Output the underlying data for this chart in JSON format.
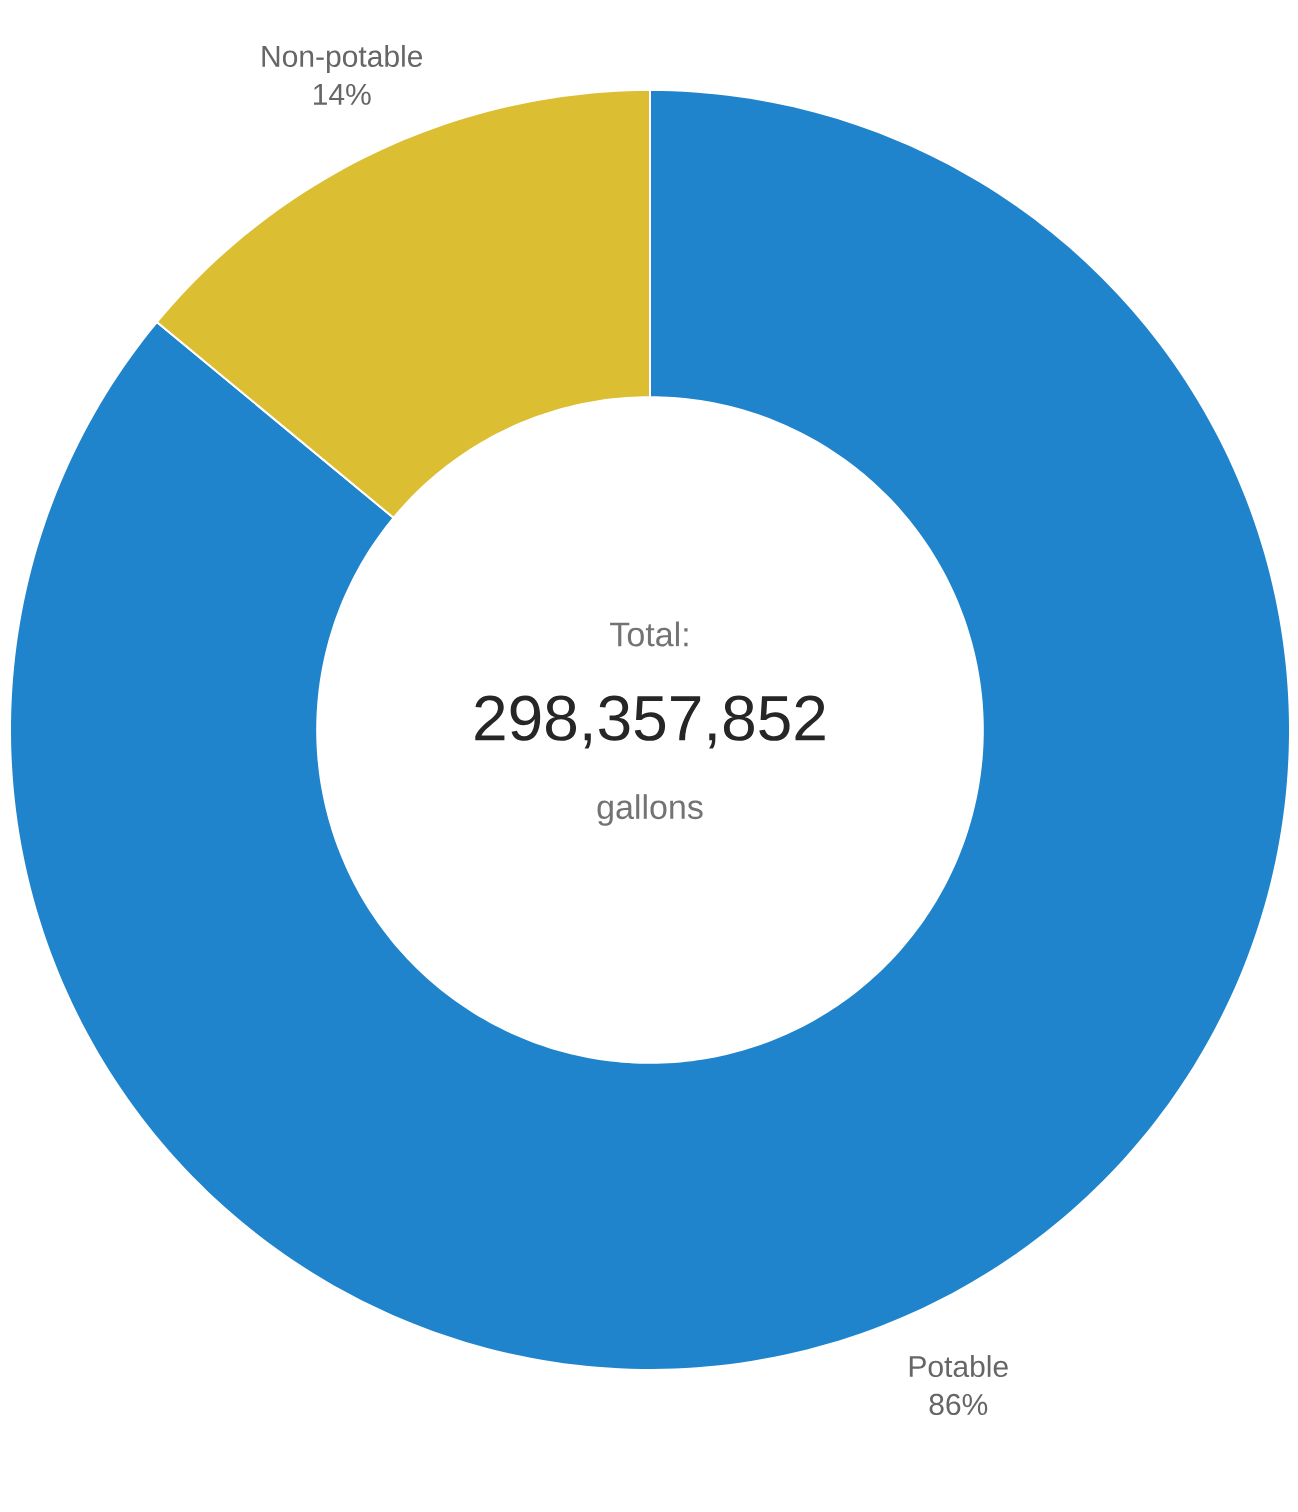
{
  "chart_data": {
    "type": "donut",
    "categories": [
      "Potable",
      "Non-potable"
    ],
    "values": [
      86,
      14
    ],
    "colors": [
      "#1f84cc",
      "#dcbe32"
    ],
    "value_labels": [
      "86%",
      "14%"
    ],
    "annotations": [
      "Total:",
      "298,357,852",
      "gallons"
    ]
  }
}
